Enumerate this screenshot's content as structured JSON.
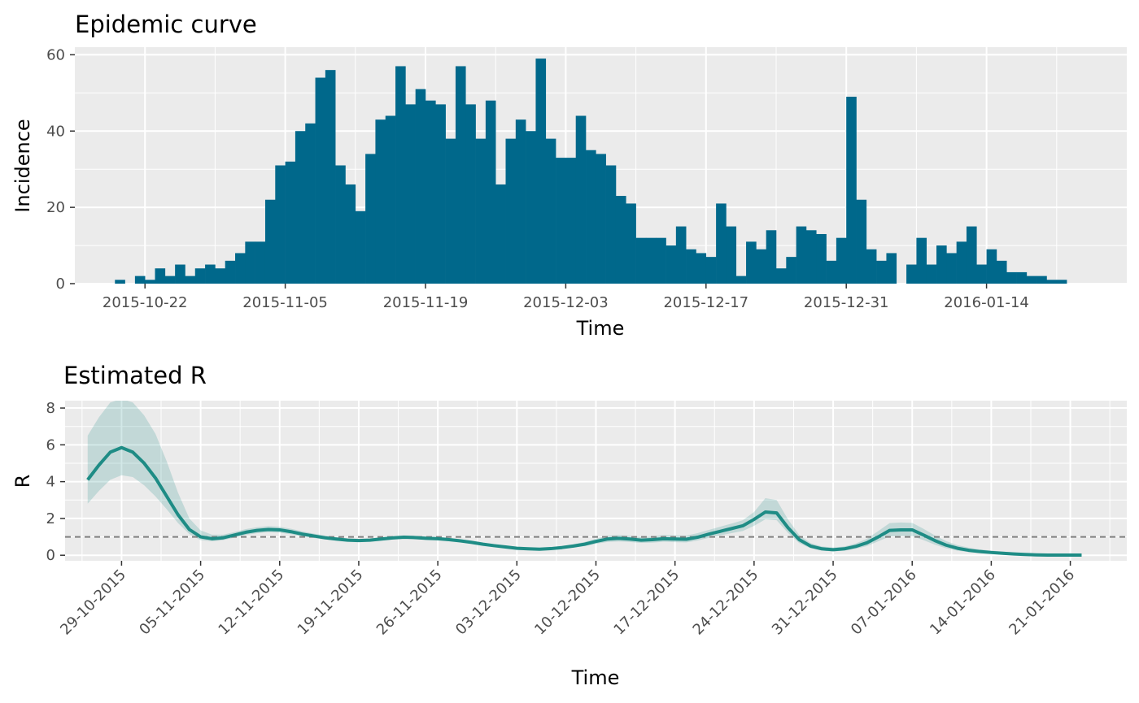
{
  "chart_data": [
    {
      "type": "bar",
      "title": "Epidemic curve",
      "xlabel": "Time",
      "ylabel": "Incidence",
      "bar_color": "#00688B",
      "panel_background": "#ebebeb",
      "grid": true,
      "legend": "none",
      "xlim": [
        "2015-10-15",
        "2016-01-28"
      ],
      "ylim": [
        0,
        62
      ],
      "x_ticks": [
        "2015-10-22",
        "2015-11-05",
        "2015-11-19",
        "2015-12-03",
        "2015-12-17",
        "2015-12-31",
        "2016-01-14"
      ],
      "y_ticks": [
        0,
        20,
        40,
        60
      ],
      "start_date": "2015-10-19",
      "values": [
        1,
        0,
        2,
        1,
        4,
        2,
        5,
        2,
        4,
        5,
        4,
        6,
        8,
        11,
        11,
        22,
        31,
        32,
        40,
        42,
        54,
        56,
        31,
        26,
        19,
        34,
        43,
        44,
        57,
        47,
        51,
        48,
        47,
        38,
        57,
        47,
        38,
        48,
        26,
        38,
        43,
        40,
        59,
        38,
        33,
        33,
        44,
        35,
        34,
        31,
        23,
        21,
        12,
        12,
        12,
        10,
        15,
        9,
        8,
        7,
        21,
        15,
        2,
        11,
        9,
        14,
        4,
        7,
        15,
        14,
        13,
        6,
        12,
        49,
        22,
        9,
        6,
        8,
        0,
        5,
        12,
        5,
        10,
        8,
        11,
        15,
        5,
        9,
        6,
        3,
        3,
        2,
        2,
        1,
        1
      ]
    },
    {
      "type": "line",
      "title": "Estimated R",
      "xlabel": "Time",
      "ylabel": "R",
      "line_color": "#1E8C85",
      "band_color": "#1E8C85",
      "reference_line": 1,
      "reference_line_color": "#808080",
      "panel_background": "#ebebeb",
      "grid": true,
      "legend": "none",
      "xlim": [
        "2015-10-24",
        "2016-01-26"
      ],
      "ylim": [
        -0.3,
        8.4
      ],
      "x_ticks": [
        "29-10-2015",
        "05-11-2015",
        "12-11-2015",
        "19-11-2015",
        "26-11-2015",
        "03-12-2015",
        "10-12-2015",
        "17-12-2015",
        "24-12-2015",
        "31-12-2015",
        "07-01-2016",
        "14-01-2016",
        "21-01-2016"
      ],
      "y_ticks": [
        0,
        2,
        4,
        6,
        8
      ],
      "start_date": "2015-10-26",
      "estimate": [
        4.1,
        4.9,
        5.6,
        5.85,
        5.6,
        5.0,
        4.2,
        3.2,
        2.2,
        1.4,
        1.0,
        0.9,
        0.95,
        1.1,
        1.25,
        1.35,
        1.4,
        1.38,
        1.28,
        1.15,
        1.05,
        0.95,
        0.88,
        0.82,
        0.8,
        0.82,
        0.88,
        0.94,
        0.98,
        0.96,
        0.92,
        0.9,
        0.85,
        0.78,
        0.7,
        0.6,
        0.52,
        0.45,
        0.38,
        0.35,
        0.33,
        0.36,
        0.42,
        0.5,
        0.6,
        0.75,
        0.88,
        0.92,
        0.88,
        0.82,
        0.85,
        0.9,
        0.88,
        0.87,
        0.98,
        1.15,
        1.3,
        1.45,
        1.6,
        1.95,
        2.35,
        2.3,
        1.5,
        0.85,
        0.5,
        0.35,
        0.3,
        0.35,
        0.48,
        0.68,
        1.0,
        1.35,
        1.38,
        1.38,
        1.1,
        0.8,
        0.55,
        0.38,
        0.27,
        0.2,
        0.15,
        0.11,
        0.07,
        0.04,
        0.02,
        0.01,
        0.01,
        0.01,
        0.01
      ],
      "lower": [
        2.8,
        3.5,
        4.1,
        4.35,
        4.25,
        3.8,
        3.2,
        2.5,
        1.75,
        1.15,
        0.82,
        0.76,
        0.82,
        0.96,
        1.1,
        1.2,
        1.25,
        1.23,
        1.14,
        1.03,
        0.94,
        0.86,
        0.8,
        0.75,
        0.73,
        0.75,
        0.8,
        0.86,
        0.9,
        0.88,
        0.84,
        0.82,
        0.77,
        0.71,
        0.63,
        0.54,
        0.46,
        0.4,
        0.33,
        0.3,
        0.28,
        0.3,
        0.35,
        0.42,
        0.5,
        0.62,
        0.72,
        0.75,
        0.72,
        0.67,
        0.69,
        0.73,
        0.71,
        0.7,
        0.8,
        0.95,
        1.08,
        1.2,
        1.32,
        1.6,
        1.95,
        1.9,
        1.22,
        0.66,
        0.38,
        0.25,
        0.21,
        0.25,
        0.35,
        0.5,
        0.76,
        1.02,
        1.05,
        1.04,
        0.82,
        0.58,
        0.38,
        0.25,
        0.17,
        0.12,
        0.08,
        0.05,
        0.03,
        0.01,
        0.0,
        0.0,
        0.0,
        0.0,
        0.0
      ],
      "upper": [
        6.5,
        7.5,
        8.3,
        8.5,
        8.3,
        7.6,
        6.6,
        5.1,
        3.4,
        2.0,
        1.35,
        1.12,
        1.12,
        1.26,
        1.42,
        1.52,
        1.58,
        1.55,
        1.44,
        1.3,
        1.18,
        1.07,
        0.99,
        0.92,
        0.89,
        0.91,
        0.98,
        1.04,
        1.08,
        1.06,
        1.02,
        1.0,
        0.95,
        0.87,
        0.79,
        0.68,
        0.6,
        0.52,
        0.45,
        0.42,
        0.4,
        0.44,
        0.51,
        0.6,
        0.72,
        0.9,
        1.06,
        1.1,
        1.06,
        1.0,
        1.03,
        1.1,
        1.08,
        1.07,
        1.2,
        1.38,
        1.55,
        1.72,
        1.9,
        2.35,
        3.1,
        3.0,
        1.95,
        1.1,
        0.66,
        0.48,
        0.42,
        0.48,
        0.64,
        0.9,
        1.32,
        1.75,
        1.78,
        1.76,
        1.44,
        1.08,
        0.77,
        0.55,
        0.41,
        0.32,
        0.25,
        0.2,
        0.15,
        0.11,
        0.08,
        0.06,
        0.05,
        0.05,
        0.05
      ]
    }
  ]
}
